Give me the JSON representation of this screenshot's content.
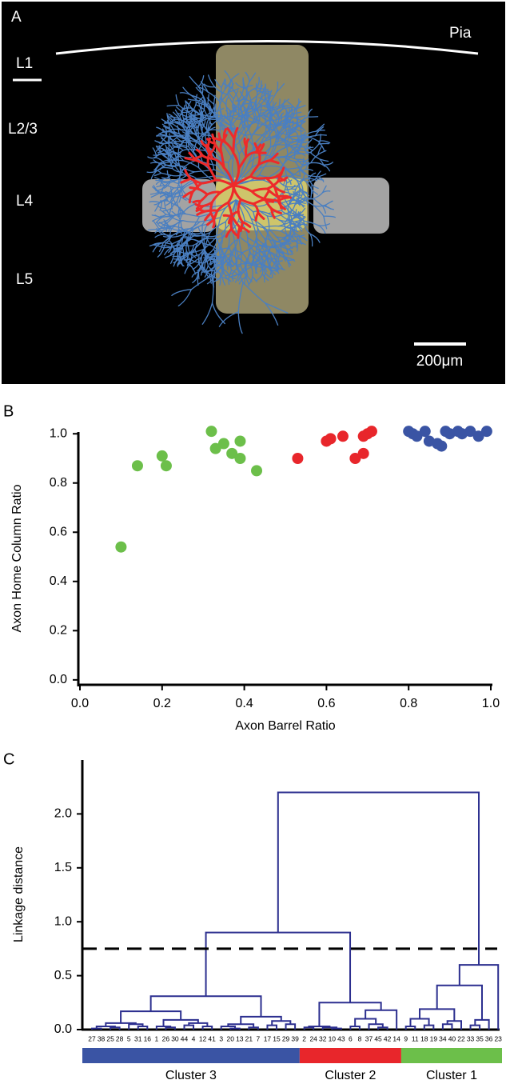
{
  "panel_a": {
    "label": "A",
    "pia": "Pia",
    "layers": [
      "L1",
      "L2/3",
      "L4",
      "L5"
    ],
    "scale_bar": "200μm"
  },
  "chart_data": [
    {
      "type": "scatter",
      "label": "B",
      "xlabel": "Axon Barrel Ratio",
      "ylabel": "Axon Home Column Ratio",
      "xlim": [
        0,
        1
      ],
      "ylim": [
        -0.02,
        1.03
      ],
      "xticks": [
        {
          "value": 0,
          "label": "0.0"
        },
        {
          "value": 0.2,
          "label": "0.2"
        },
        {
          "value": 0.4,
          "label": "0.4"
        },
        {
          "value": 0.6,
          "label": "0.6"
        },
        {
          "value": 0.8,
          "label": "0.8"
        },
        {
          "value": 1,
          "label": "1.0"
        }
      ],
      "yticks": [
        {
          "value": 0,
          "label": "0.0"
        },
        {
          "value": 0.2,
          "label": "0.2"
        },
        {
          "value": 0.4,
          "label": "0.4"
        },
        {
          "value": 0.6,
          "label": "0.6"
        },
        {
          "value": 0.8,
          "label": "0.8"
        },
        {
          "value": 1,
          "label": "1.0"
        }
      ],
      "series": [
        {
          "color": "#6cbf4a",
          "x": [
            0.1,
            0.14,
            0.2,
            0.21,
            0.32,
            0.33,
            0.35,
            0.37,
            0.39,
            0.39,
            0.43
          ],
          "values": [
            0.54,
            0.87,
            0.91,
            0.87,
            1.01,
            0.94,
            0.96,
            0.92,
            0.97,
            0.9,
            0.85
          ]
        },
        {
          "color": "#e8262b",
          "x": [
            0.53,
            0.6,
            0.61,
            0.64,
            0.67,
            0.69,
            0.69,
            0.7,
            0.71
          ],
          "values": [
            0.9,
            0.97,
            0.98,
            0.99,
            0.9,
            0.92,
            0.99,
            1.0,
            1.01
          ]
        },
        {
          "color": "#3a54a4",
          "x": [
            0.8,
            0.81,
            0.82,
            0.84,
            0.85,
            0.87,
            0.88,
            0.89,
            0.9,
            0.92,
            0.93,
            0.95,
            0.97,
            0.99
          ],
          "values": [
            1.01,
            1.0,
            0.99,
            1.01,
            0.97,
            0.96,
            0.95,
            1.01,
            1.0,
            1.01,
            1.0,
            1.01,
            0.99,
            1.01
          ]
        }
      ]
    },
    {
      "type": "dendrogram",
      "label": "C",
      "ylabel": "Linkage distance",
      "ylim": [
        0,
        2.5
      ],
      "yticks": [
        {
          "value": 0,
          "label": "0.0"
        },
        {
          "value": 0.5,
          "label": "0.5"
        },
        {
          "value": 1,
          "label": "1.0"
        },
        {
          "value": 1.5,
          "label": "1.5"
        },
        {
          "value": 2,
          "label": "2.0"
        }
      ],
      "color": "#2c2f8f",
      "threshold": 0.75,
      "clusters": [
        {
          "name": "Cluster 3",
          "color": "#3a54a4"
        },
        {
          "name": "Cluster 2",
          "color": "#e8262b"
        },
        {
          "name": "Cluster 1",
          "color": "#6cbf4a"
        }
      ],
      "tree": {
        "height": 2.2,
        "children": [
          {
            "height": 0.9,
            "children": [
              {
                "height": 0.31,
                "children": [
                  {
                    "height": 0.17,
                    "children": [
                      {
                        "height": 0.06,
                        "children": [
                          {
                            "height": 0.03,
                            "children": [
                              {
                                "height": 0.01,
                                "children": [
                                  "27",
                                  "38"
                                ]
                              },
                              {
                                "height": 0.02,
                                "children": [
                                  "25",
                                  "28"
                                ]
                              }
                            ]
                          },
                          {
                            "height": 0.05,
                            "children": [
                              "5",
                              {
                                "height": 0.03,
                                "children": [
                                  "31",
                                  "16"
                                ]
                              }
                            ]
                          }
                        ]
                      },
                      {
                        "height": 0.09,
                        "children": [
                          {
                            "height": 0.03,
                            "children": [
                              "1",
                              {
                                "height": 0.02,
                                "children": [
                                  "26",
                                  "30"
                                ]
                              }
                            ]
                          },
                          {
                            "height": 0.06,
                            "children": [
                              {
                                "height": 0.04,
                                "children": [
                                  "44",
                                  "4"
                                ]
                              },
                              {
                                "height": 0.03,
                                "children": [
                                  "12",
                                  "41"
                                ]
                              }
                            ]
                          }
                        ]
                      }
                    ]
                  },
                  {
                    "height": 0.12,
                    "children": [
                      {
                        "height": 0.05,
                        "children": [
                          {
                            "height": 0.03,
                            "children": [
                              "3",
                              {
                                "height": 0.01,
                                "children": [
                                  "20",
                                  "13"
                                ]
                              }
                            ]
                          },
                          {
                            "height": 0.02,
                            "children": [
                              "21",
                              "7"
                            ]
                          }
                        ]
                      },
                      {
                        "height": 0.08,
                        "children": [
                          {
                            "height": 0.04,
                            "children": [
                              "17",
                              "15"
                            ]
                          },
                          {
                            "height": 0.05,
                            "children": [
                              "29",
                              "39"
                            ]
                          }
                        ]
                      }
                    ]
                  }
                ]
              },
              {
                "height": 0.25,
                "children": [
                  {
                    "height": 0.03,
                    "children": [
                      {
                        "height": 0.02,
                        "children": [
                          "2",
                          "24"
                        ]
                      },
                      {
                        "height": 0.02,
                        "children": [
                          "32",
                          {
                            "height": 0.01,
                            "children": [
                              "10",
                              "43"
                            ]
                          }
                        ]
                      }
                    ]
                  },
                  {
                    "height": 0.18,
                    "children": [
                      {
                        "height": 0.1,
                        "children": [
                          {
                            "height": 0.03,
                            "children": [
                              "6",
                              "8"
                            ]
                          },
                          {
                            "height": 0.05,
                            "children": [
                              "37",
                              {
                                "height": 0.02,
                                "children": [
                                  "45",
                                  "42"
                                ]
                              }
                            ]
                          }
                        ]
                      },
                      "14"
                    ]
                  }
                ]
              }
            ]
          },
          {
            "height": 0.6,
            "children": [
              {
                "height": 0.41,
                "children": [
                  {
                    "height": 0.19,
                    "children": [
                      {
                        "height": 0.1,
                        "children": [
                          {
                            "height": 0.03,
                            "children": [
                              "9",
                              "11"
                            ]
                          },
                          {
                            "height": 0.04,
                            "children": [
                              "18",
                              "19"
                            ]
                          }
                        ]
                      },
                      {
                        "height": 0.08,
                        "children": [
                          {
                            "height": 0.05,
                            "children": [
                              "34",
                              "40"
                            ]
                          },
                          "22"
                        ]
                      }
                    ]
                  },
                  {
                    "height": 0.09,
                    "children": [
                      {
                        "height": 0.04,
                        "children": [
                          "33",
                          "35"
                        ]
                      },
                      "36"
                    ]
                  }
                ]
              },
              "23"
            ]
          }
        ]
      }
    }
  ]
}
